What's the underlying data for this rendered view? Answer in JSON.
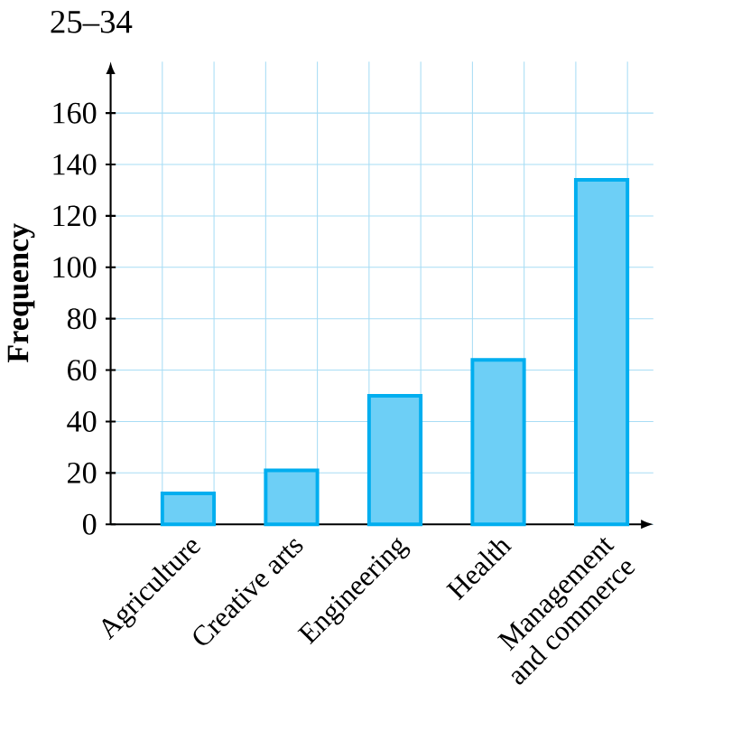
{
  "chart_data": {
    "type": "bar",
    "title": "25–34",
    "ylabel": "Frequency",
    "categories": [
      "Agriculture",
      "Creative arts",
      "Engineering",
      "Health",
      "Management and commerce"
    ],
    "values": [
      12,
      21,
      50,
      64,
      134
    ],
    "color": "#6dcff6",
    "ylim": [
      0,
      180
    ],
    "yticks": [
      0,
      20,
      40,
      60,
      80,
      100,
      120,
      140,
      160
    ],
    "grid": true
  }
}
